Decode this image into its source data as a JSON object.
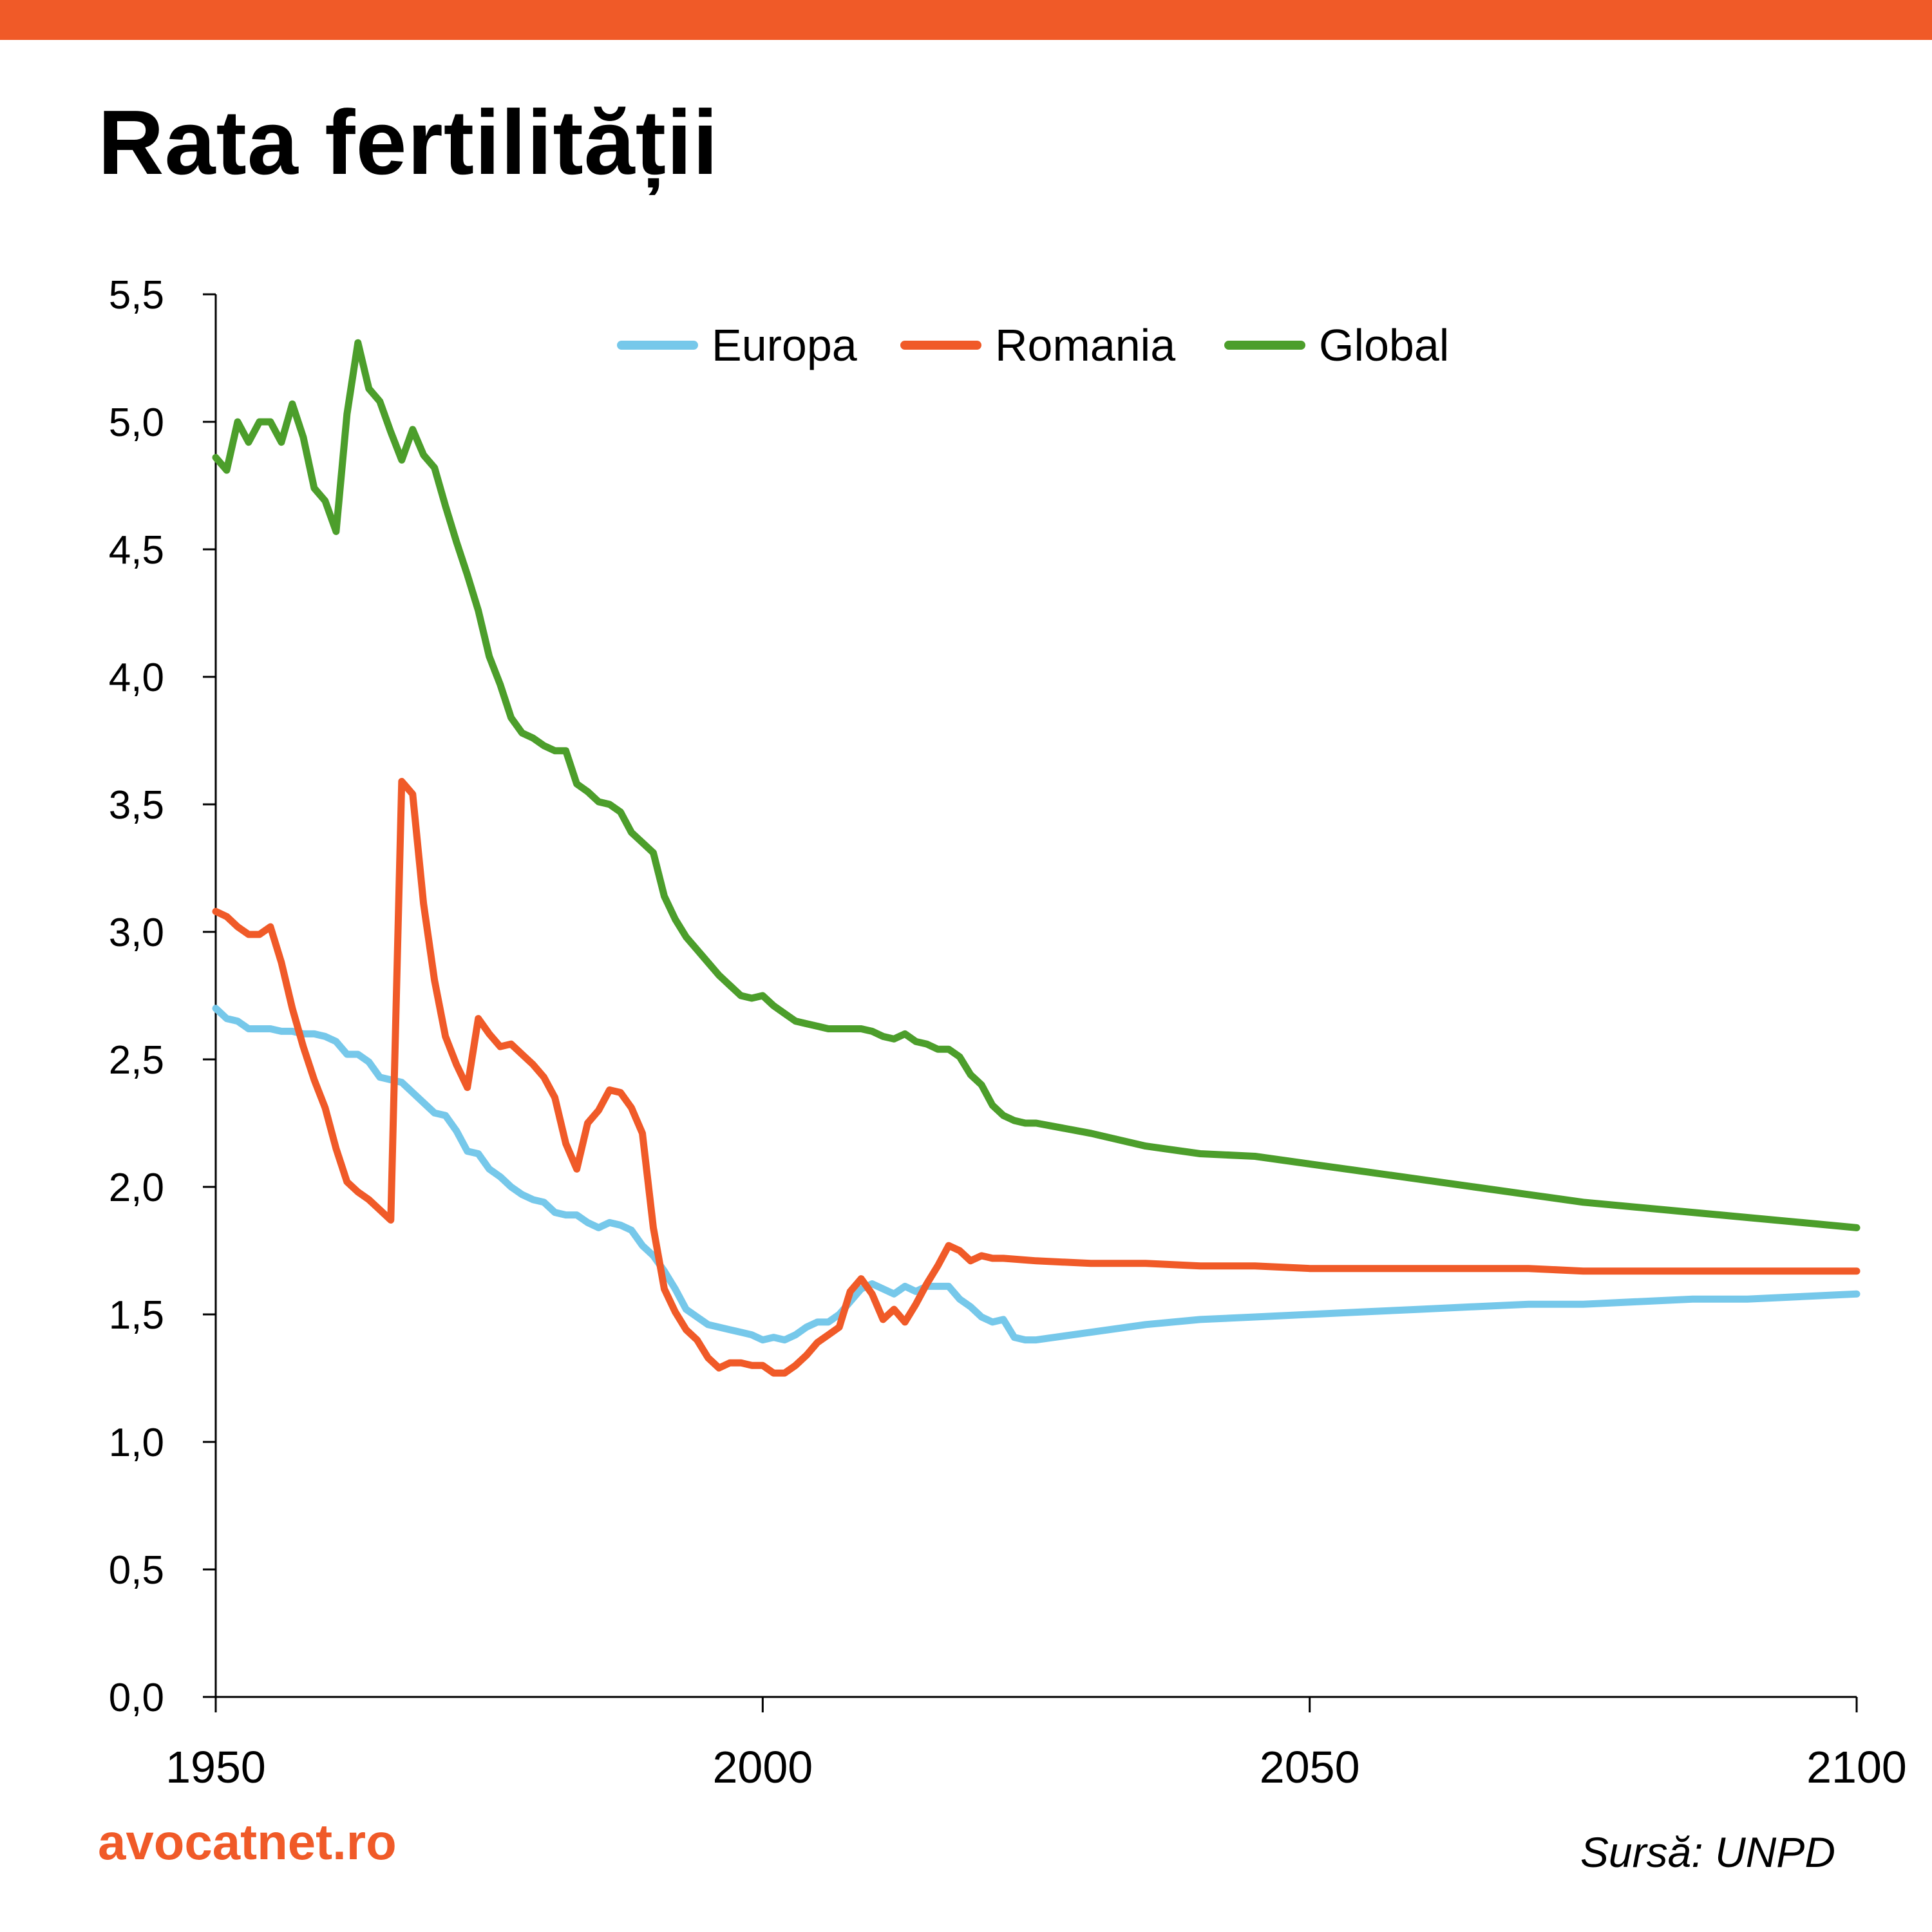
{
  "header": {
    "title": "Rata fertilității",
    "bar_color": "#F05A28"
  },
  "footer": {
    "brand": "avocatnet.ro",
    "brand_color": "#F05A28",
    "source": "Sursă: UNPD"
  },
  "chart_data": {
    "type": "line",
    "title": "Rata fertilității",
    "xlabel": "",
    "ylabel": "",
    "xlim": [
      1950,
      2100
    ],
    "ylim": [
      0,
      5.5
    ],
    "x_ticks": [
      "1950",
      "2000",
      "2050",
      "2100"
    ],
    "y_ticks": [
      "0,0",
      "0,5",
      "1,0",
      "1,5",
      "2,0",
      "2,5",
      "3,0",
      "3,5",
      "4,0",
      "4,5",
      "5,0",
      "5,5"
    ],
    "grid": false,
    "legend_position": "top",
    "series": [
      {
        "name": "Europa",
        "color": "#76C8EA",
        "points": [
          [
            1950,
            2.7
          ],
          [
            1951,
            2.66
          ],
          [
            1952,
            2.65
          ],
          [
            1953,
            2.62
          ],
          [
            1954,
            2.62
          ],
          [
            1955,
            2.62
          ],
          [
            1956,
            2.61
          ],
          [
            1957,
            2.61
          ],
          [
            1958,
            2.6
          ],
          [
            1959,
            2.6
          ],
          [
            1960,
            2.59
          ],
          [
            1961,
            2.57
          ],
          [
            1962,
            2.52
          ],
          [
            1963,
            2.52
          ],
          [
            1964,
            2.49
          ],
          [
            1965,
            2.43
          ],
          [
            1966,
            2.42
          ],
          [
            1967,
            2.41
          ],
          [
            1968,
            2.37
          ],
          [
            1969,
            2.33
          ],
          [
            1970,
            2.29
          ],
          [
            1971,
            2.28
          ],
          [
            1972,
            2.22
          ],
          [
            1973,
            2.14
          ],
          [
            1974,
            2.13
          ],
          [
            1975,
            2.07
          ],
          [
            1976,
            2.04
          ],
          [
            1977,
            2.0
          ],
          [
            1978,
            1.97
          ],
          [
            1979,
            1.95
          ],
          [
            1980,
            1.94
          ],
          [
            1981,
            1.9
          ],
          [
            1982,
            1.89
          ],
          [
            1983,
            1.89
          ],
          [
            1984,
            1.86
          ],
          [
            1985,
            1.84
          ],
          [
            1986,
            1.86
          ],
          [
            1987,
            1.85
          ],
          [
            1988,
            1.83
          ],
          [
            1989,
            1.77
          ],
          [
            1990,
            1.73
          ],
          [
            1991,
            1.67
          ],
          [
            1992,
            1.6
          ],
          [
            1993,
            1.52
          ],
          [
            1994,
            1.49
          ],
          [
            1995,
            1.46
          ],
          [
            1996,
            1.45
          ],
          [
            1997,
            1.44
          ],
          [
            1998,
            1.43
          ],
          [
            1999,
            1.42
          ],
          [
            2000,
            1.4
          ],
          [
            2001,
            1.41
          ],
          [
            2002,
            1.4
          ],
          [
            2003,
            1.42
          ],
          [
            2004,
            1.45
          ],
          [
            2005,
            1.47
          ],
          [
            2006,
            1.47
          ],
          [
            2007,
            1.5
          ],
          [
            2008,
            1.55
          ],
          [
            2009,
            1.6
          ],
          [
            2010,
            1.62
          ],
          [
            2011,
            1.6
          ],
          [
            2012,
            1.58
          ],
          [
            2013,
            1.61
          ],
          [
            2014,
            1.59
          ],
          [
            2015,
            1.61
          ],
          [
            2016,
            1.61
          ],
          [
            2017,
            1.61
          ],
          [
            2018,
            1.56
          ],
          [
            2019,
            1.53
          ],
          [
            2020,
            1.49
          ],
          [
            2021,
            1.47
          ],
          [
            2022,
            1.48
          ],
          [
            2023,
            1.41
          ],
          [
            2024,
            1.4
          ],
          [
            2025,
            1.4
          ],
          [
            2030,
            1.43
          ],
          [
            2035,
            1.46
          ],
          [
            2040,
            1.48
          ],
          [
            2045,
            1.49
          ],
          [
            2050,
            1.5
          ],
          [
            2055,
            1.51
          ],
          [
            2060,
            1.52
          ],
          [
            2065,
            1.53
          ],
          [
            2070,
            1.54
          ],
          [
            2075,
            1.54
          ],
          [
            2080,
            1.55
          ],
          [
            2085,
            1.56
          ],
          [
            2090,
            1.56
          ],
          [
            2095,
            1.57
          ],
          [
            2100,
            1.58
          ]
        ]
      },
      {
        "name": "Romania",
        "color": "#F05A28",
        "points": [
          [
            1950,
            3.08
          ],
          [
            1951,
            3.06
          ],
          [
            1952,
            3.02
          ],
          [
            1953,
            2.99
          ],
          [
            1954,
            2.99
          ],
          [
            1955,
            3.02
          ],
          [
            1956,
            2.88
          ],
          [
            1957,
            2.7
          ],
          [
            1958,
            2.55
          ],
          [
            1959,
            2.42
          ],
          [
            1960,
            2.31
          ],
          [
            1961,
            2.15
          ],
          [
            1962,
            2.02
          ],
          [
            1963,
            1.98
          ],
          [
            1964,
            1.95
          ],
          [
            1965,
            1.91
          ],
          [
            1966,
            1.87
          ],
          [
            1967,
            3.59
          ],
          [
            1968,
            3.54
          ],
          [
            1969,
            3.11
          ],
          [
            1970,
            2.81
          ],
          [
            1971,
            2.59
          ],
          [
            1972,
            2.48
          ],
          [
            1973,
            2.39
          ],
          [
            1974,
            2.66
          ],
          [
            1975,
            2.6
          ],
          [
            1976,
            2.55
          ],
          [
            1977,
            2.56
          ],
          [
            1978,
            2.52
          ],
          [
            1979,
            2.48
          ],
          [
            1980,
            2.43
          ],
          [
            1981,
            2.35
          ],
          [
            1982,
            2.17
          ],
          [
            1983,
            2.07
          ],
          [
            1984,
            2.25
          ],
          [
            1985,
            2.3
          ],
          [
            1986,
            2.38
          ],
          [
            1987,
            2.37
          ],
          [
            1988,
            2.31
          ],
          [
            1989,
            2.21
          ],
          [
            1990,
            1.84
          ],
          [
            1991,
            1.6
          ],
          [
            1992,
            1.51
          ],
          [
            1993,
            1.44
          ],
          [
            1994,
            1.4
          ],
          [
            1995,
            1.33
          ],
          [
            1996,
            1.29
          ],
          [
            1997,
            1.31
          ],
          [
            1998,
            1.31
          ],
          [
            1999,
            1.3
          ],
          [
            2000,
            1.3
          ],
          [
            2001,
            1.27
          ],
          [
            2002,
            1.27
          ],
          [
            2003,
            1.3
          ],
          [
            2004,
            1.34
          ],
          [
            2005,
            1.39
          ],
          [
            2006,
            1.42
          ],
          [
            2007,
            1.45
          ],
          [
            2008,
            1.59
          ],
          [
            2009,
            1.64
          ],
          [
            2010,
            1.58
          ],
          [
            2011,
            1.48
          ],
          [
            2012,
            1.52
          ],
          [
            2013,
            1.47
          ],
          [
            2014,
            1.54
          ],
          [
            2015,
            1.62
          ],
          [
            2016,
            1.69
          ],
          [
            2017,
            1.77
          ],
          [
            2018,
            1.75
          ],
          [
            2019,
            1.71
          ],
          [
            2020,
            1.73
          ],
          [
            2021,
            1.72
          ],
          [
            2022,
            1.72
          ],
          [
            2025,
            1.71
          ],
          [
            2030,
            1.7
          ],
          [
            2035,
            1.7
          ],
          [
            2040,
            1.69
          ],
          [
            2045,
            1.69
          ],
          [
            2050,
            1.68
          ],
          [
            2055,
            1.68
          ],
          [
            2060,
            1.68
          ],
          [
            2065,
            1.68
          ],
          [
            2070,
            1.68
          ],
          [
            2075,
            1.67
          ],
          [
            2080,
            1.67
          ],
          [
            2085,
            1.67
          ],
          [
            2090,
            1.67
          ],
          [
            2095,
            1.67
          ],
          [
            2100,
            1.67
          ]
        ]
      },
      {
        "name": "Global",
        "color": "#4C9E2B",
        "points": [
          [
            1950,
            4.86
          ],
          [
            1951,
            4.81
          ],
          [
            1952,
            5.0
          ],
          [
            1953,
            4.92
          ],
          [
            1954,
            5.0
          ],
          [
            1955,
            5.0
          ],
          [
            1956,
            4.92
          ],
          [
            1957,
            5.07
          ],
          [
            1958,
            4.94
          ],
          [
            1959,
            4.74
          ],
          [
            1960,
            4.69
          ],
          [
            1961,
            4.57
          ],
          [
            1962,
            5.03
          ],
          [
            1963,
            5.31
          ],
          [
            1964,
            5.13
          ],
          [
            1965,
            5.08
          ],
          [
            1966,
            4.96
          ],
          [
            1967,
            4.85
          ],
          [
            1968,
            4.97
          ],
          [
            1969,
            4.87
          ],
          [
            1970,
            4.82
          ],
          [
            1971,
            4.67
          ],
          [
            1972,
            4.53
          ],
          [
            1973,
            4.4
          ],
          [
            1974,
            4.26
          ],
          [
            1975,
            4.08
          ],
          [
            1976,
            3.97
          ],
          [
            1977,
            3.84
          ],
          [
            1978,
            3.78
          ],
          [
            1979,
            3.76
          ],
          [
            1980,
            3.73
          ],
          [
            1981,
            3.71
          ],
          [
            1982,
            3.71
          ],
          [
            1983,
            3.58
          ],
          [
            1984,
            3.55
          ],
          [
            1985,
            3.51
          ],
          [
            1986,
            3.5
          ],
          [
            1987,
            3.47
          ],
          [
            1988,
            3.39
          ],
          [
            1989,
            3.35
          ],
          [
            1990,
            3.31
          ],
          [
            1991,
            3.14
          ],
          [
            1992,
            3.05
          ],
          [
            1993,
            2.98
          ],
          [
            1994,
            2.93
          ],
          [
            1995,
            2.88
          ],
          [
            1996,
            2.83
          ],
          [
            1997,
            2.79
          ],
          [
            1998,
            2.75
          ],
          [
            1999,
            2.74
          ],
          [
            2000,
            2.75
          ],
          [
            2001,
            2.71
          ],
          [
            2002,
            2.68
          ],
          [
            2003,
            2.65
          ],
          [
            2004,
            2.64
          ],
          [
            2005,
            2.63
          ],
          [
            2006,
            2.62
          ],
          [
            2007,
            2.62
          ],
          [
            2008,
            2.62
          ],
          [
            2009,
            2.62
          ],
          [
            2010,
            2.61
          ],
          [
            2011,
            2.59
          ],
          [
            2012,
            2.58
          ],
          [
            2013,
            2.6
          ],
          [
            2014,
            2.57
          ],
          [
            2015,
            2.56
          ],
          [
            2016,
            2.54
          ],
          [
            2017,
            2.54
          ],
          [
            2018,
            2.51
          ],
          [
            2019,
            2.44
          ],
          [
            2020,
            2.4
          ],
          [
            2021,
            2.32
          ],
          [
            2022,
            2.28
          ],
          [
            2023,
            2.26
          ],
          [
            2024,
            2.25
          ],
          [
            2025,
            2.25
          ],
          [
            2030,
            2.21
          ],
          [
            2035,
            2.16
          ],
          [
            2040,
            2.13
          ],
          [
            2045,
            2.12
          ],
          [
            2050,
            2.09
          ],
          [
            2055,
            2.06
          ],
          [
            2060,
            2.03
          ],
          [
            2065,
            2.0
          ],
          [
            2070,
            1.97
          ],
          [
            2075,
            1.94
          ],
          [
            2080,
            1.92
          ],
          [
            2085,
            1.9
          ],
          [
            2090,
            1.88
          ],
          [
            2095,
            1.86
          ],
          [
            2100,
            1.84
          ]
        ]
      }
    ]
  }
}
